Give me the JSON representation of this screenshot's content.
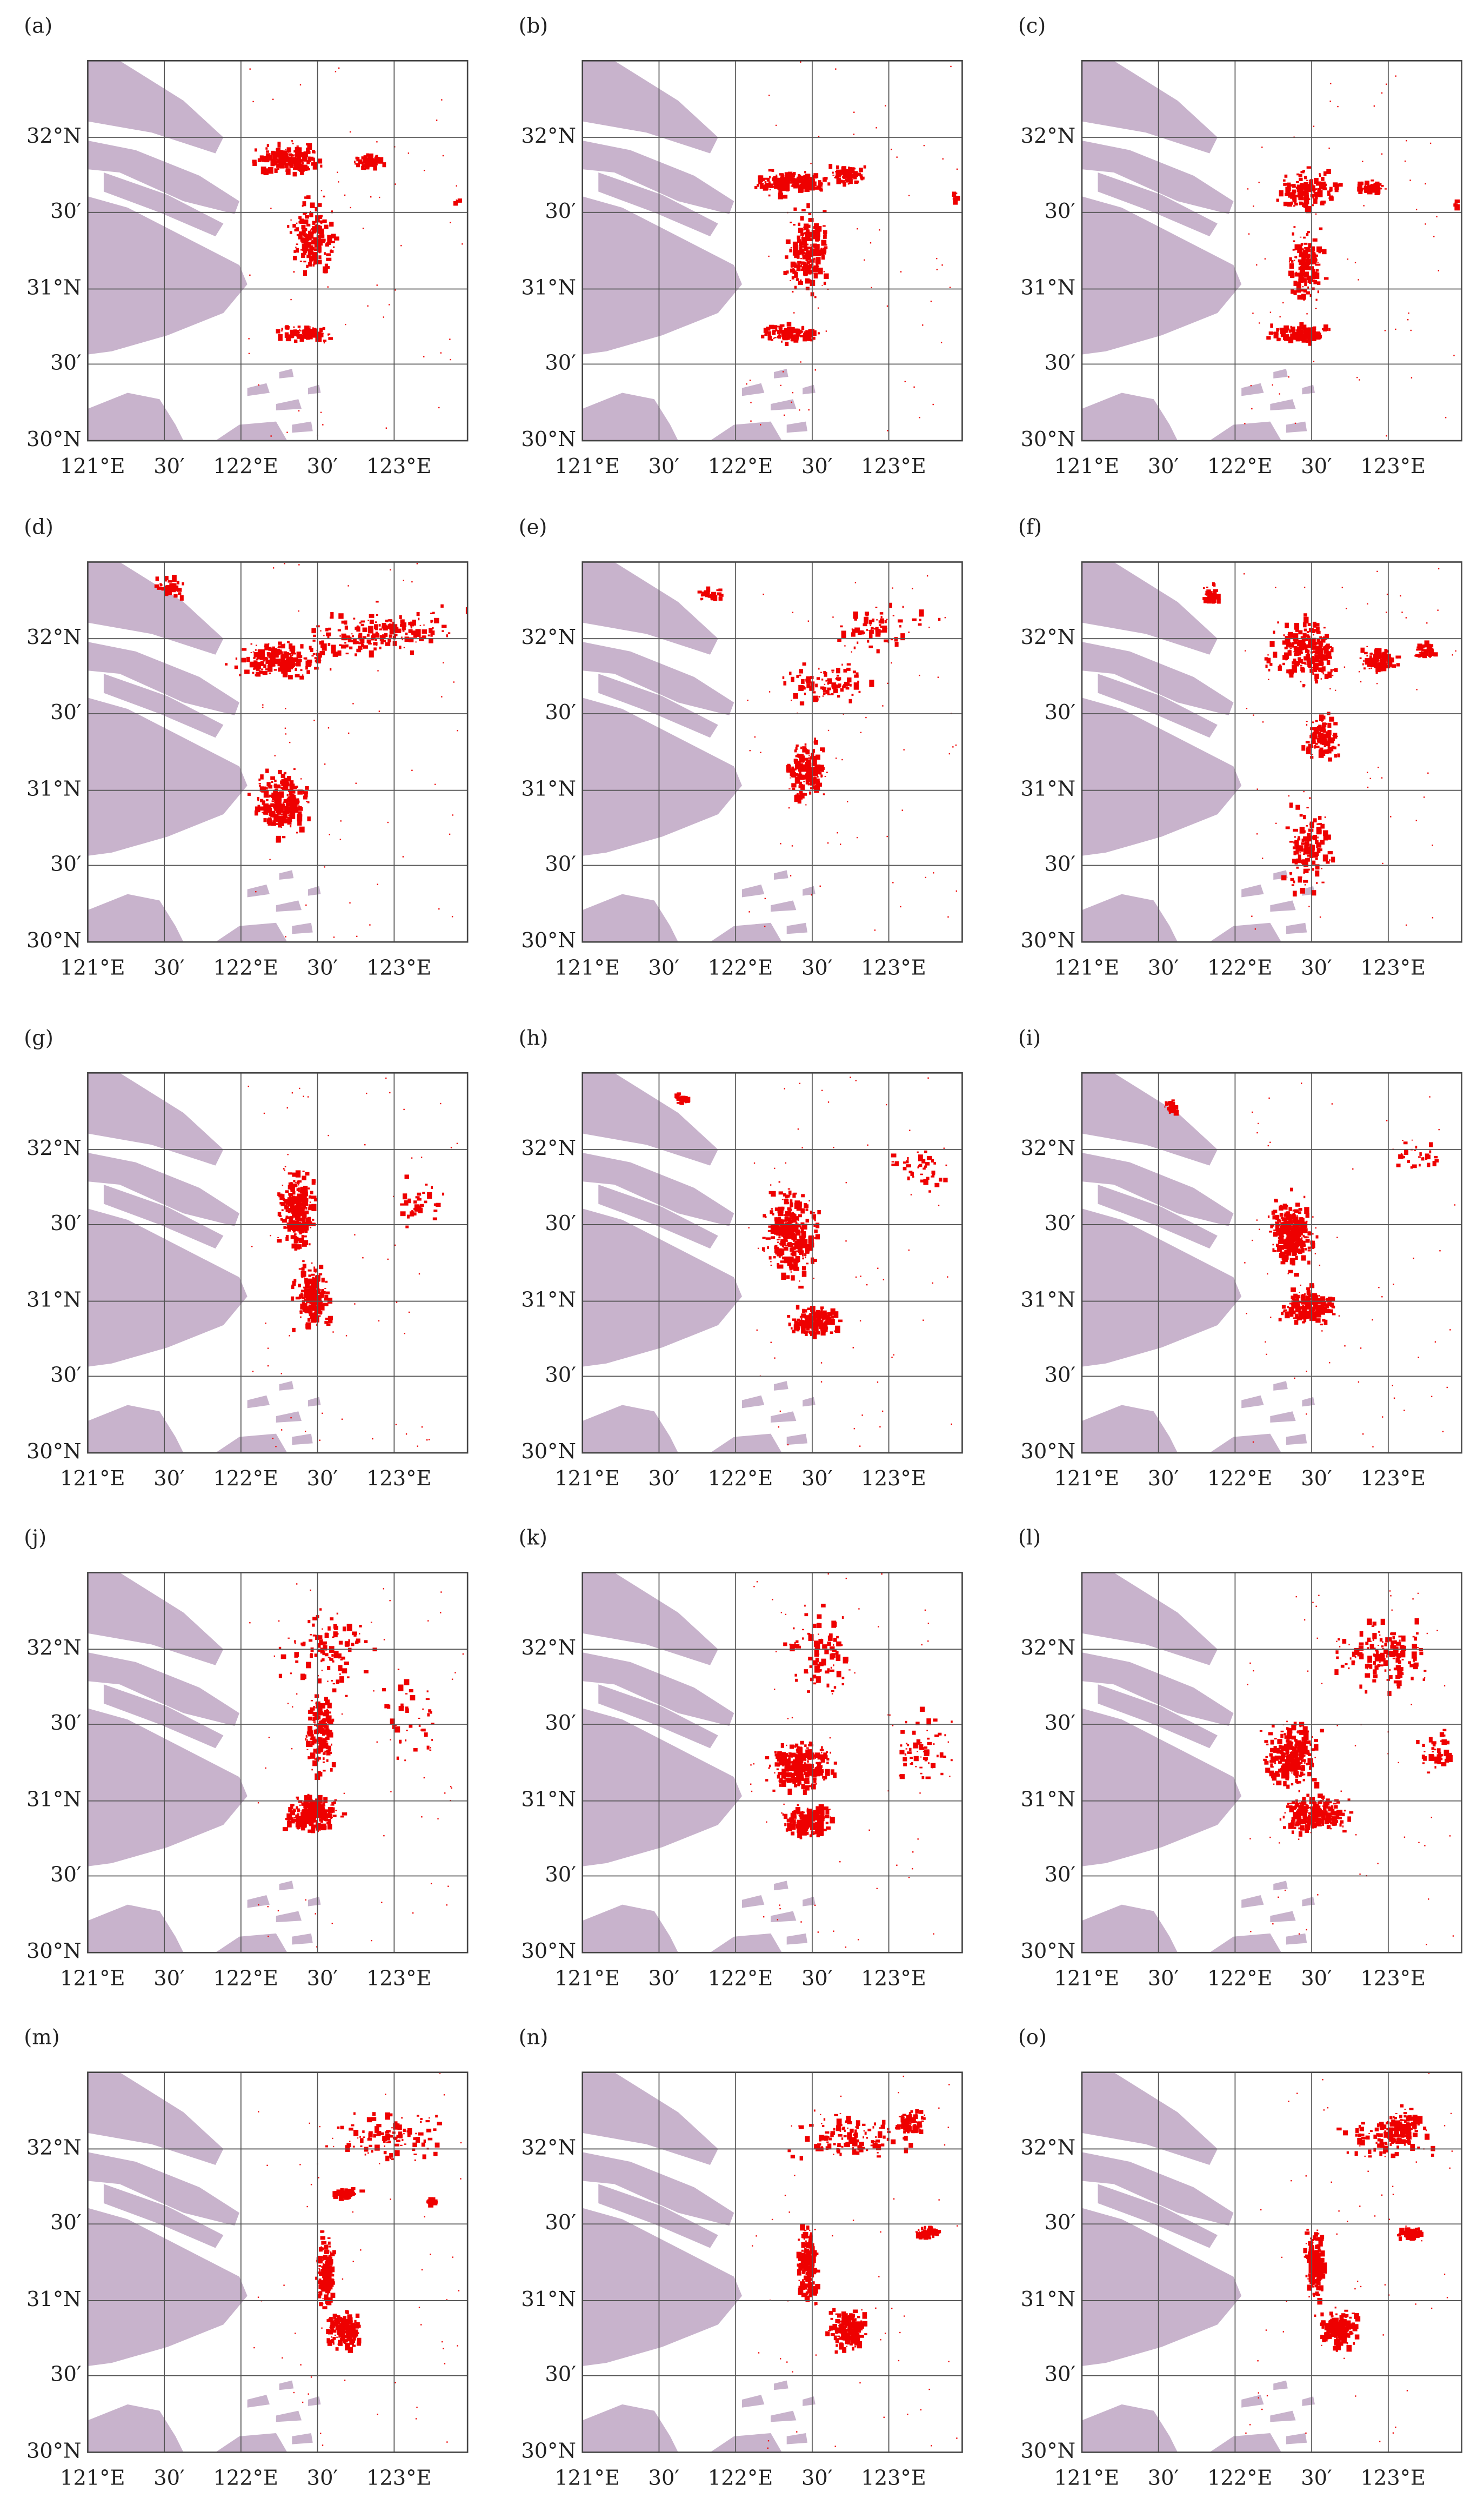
{
  "panels": [
    {
      "label": "(a)"
    },
    {
      "label": "(b)"
    },
    {
      "label": "(c)"
    },
    {
      "label": "(d)"
    },
    {
      "label": "(e)"
    },
    {
      "label": "(f)"
    },
    {
      "label": "(g)"
    },
    {
      "label": "(h)"
    },
    {
      "label": "(i)"
    },
    {
      "label": "(j)"
    },
    {
      "label": "(k)"
    },
    {
      "label": "(l)"
    },
    {
      "label": "(m)"
    },
    {
      "label": "(n)"
    },
    {
      "label": "(o)"
    }
  ],
  "y_axis_labels": [
    "32°N",
    "30′",
    "31°N",
    "30′",
    "30°N"
  ],
  "x_axis_labels": [
    "121°E",
    "30′",
    "122°E",
    "30′",
    "123°E"
  ]
}
